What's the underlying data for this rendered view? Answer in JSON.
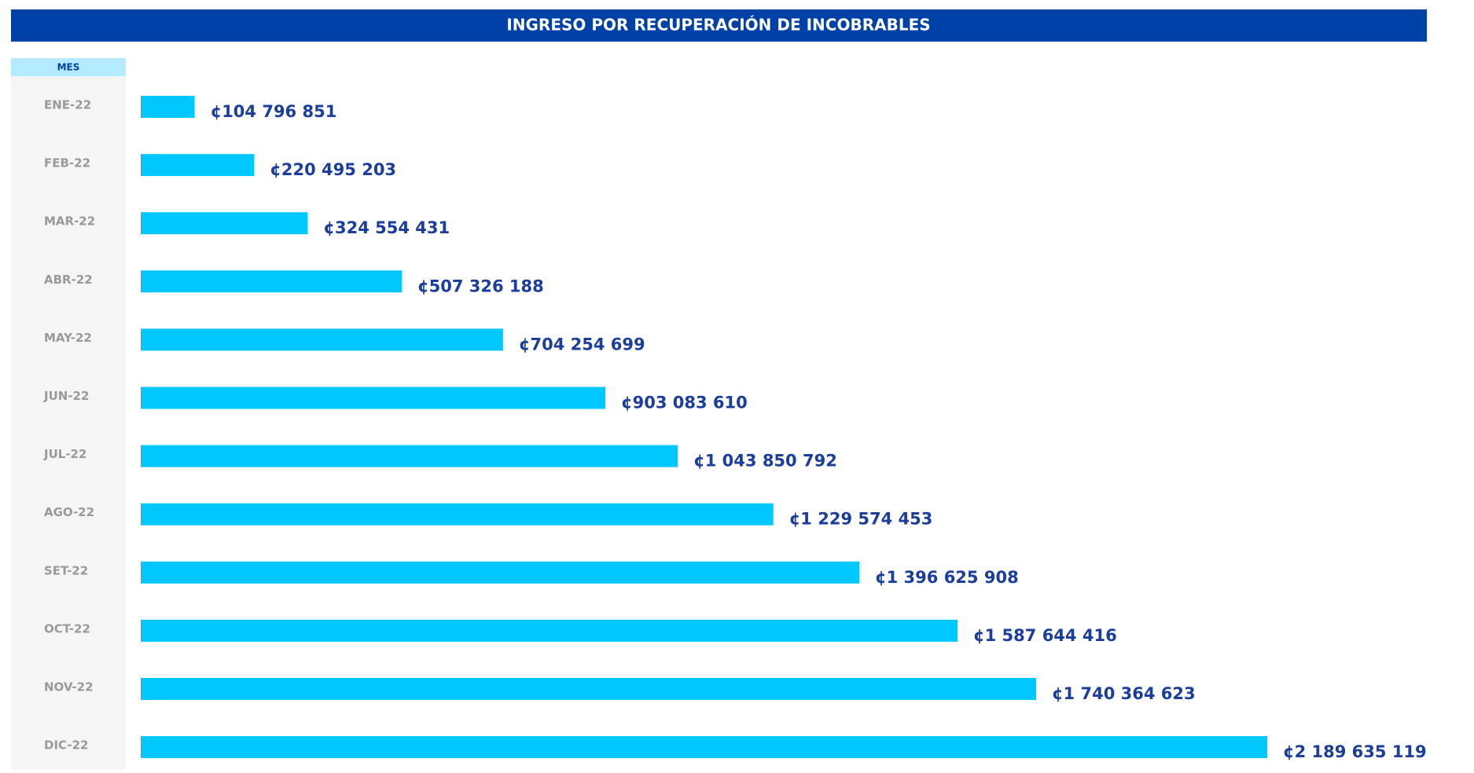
{
  "chart_data": {
    "type": "bar",
    "title": "INGRESO POR RECUPERACIÓN DE INCOBRABLES",
    "category_header": "MES",
    "orientation": "horizontal",
    "color": "#00c8ff",
    "label_color": "#1a3d9e",
    "categories": [
      "ENE-22",
      "FEB-22",
      "MAR-22",
      "ABR-22",
      "MAY-22",
      "JUN-22",
      "JUL-22",
      "AGO-22",
      "SET-22",
      "OCT-22",
      "NOV-22",
      "DIC-22"
    ],
    "values": [
      104796851,
      220495203,
      324554431,
      507326188,
      704254699,
      903083610,
      1043850792,
      1229574453,
      1396625908,
      1587644416,
      1740364623,
      2189635119
    ],
    "value_labels": [
      "¢104 796 851",
      "¢220 495 203",
      "¢324 554 431",
      "¢507 326 188",
      "¢704 254 699",
      "¢903 083 610",
      "¢1 043 850 792",
      "¢1 229 574 453",
      "¢1 396 625 908",
      "¢1 587 644 416",
      "¢1 740 364 623",
      "¢2 189 635 119"
    ]
  }
}
